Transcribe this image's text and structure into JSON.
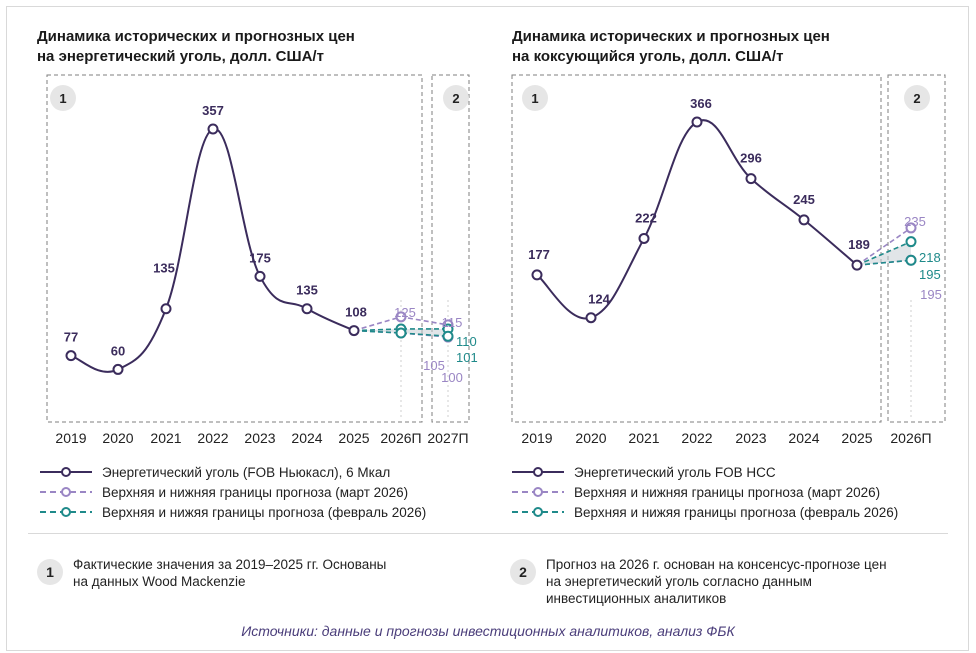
{
  "chart_data": [
    {
      "type": "line",
      "title": "Динамика исторических и прогнозных цен на энергетический уголь, долл. США/т",
      "title_lines": [
        "Динамика исторических и прогнозных цен",
        "на энергетический уголь, долл. США/т"
      ],
      "categories": [
        "2019",
        "2020",
        "2021",
        "2022",
        "2023",
        "2024",
        "2025",
        "2026П",
        "2027П"
      ],
      "series": [
        {
          "name": "Энергетический уголь (FOB Ньюкасл), 6 Мкал",
          "x": [
            "2019",
            "2020",
            "2021",
            "2022",
            "2023",
            "2024",
            "2025"
          ],
          "values": [
            77,
            60,
            135,
            357,
            175,
            135,
            108
          ],
          "color": "#3b2c5c"
        },
        {
          "name": "Верхняя и нижняя границы прогноза (март 2026)",
          "x": [
            "2025",
            "2026П",
            "2027П"
          ],
          "upper": [
            108,
            125,
            115
          ],
          "lower": [
            108,
            105,
            100
          ],
          "color": "#9a86c4"
        },
        {
          "name": "Верхняя и нижяя границы прогноза (февраль 2026)",
          "x": [
            "2025",
            "2026П",
            "2027П"
          ],
          "upper": [
            108,
            110,
            110
          ],
          "lower": [
            108,
            105,
            101
          ],
          "color": "#1f8a8a"
        }
      ],
      "marker_labels": {
        "main": [
          "77",
          "60",
          "135",
          "357",
          "175",
          "135",
          "108"
        ],
        "march": [
          "125",
          "105",
          "115",
          "100"
        ],
        "february": [
          "110",
          "101"
        ]
      },
      "period_badges": [
        "1",
        "2"
      ],
      "ylim": [
        0,
        400
      ]
    },
    {
      "type": "line",
      "title": "Динамика исторических и прогнозных цен на коксующийся уголь, долл. США/т",
      "title_lines": [
        "Динамика исторических и прогнозных цен",
        "на коксующийся уголь, долл. США/т"
      ],
      "categories": [
        "2019",
        "2020",
        "2021",
        "2022",
        "2023",
        "2024",
        "2025",
        "2026П"
      ],
      "series": [
        {
          "name": "Энергетический уголь FOB HCC",
          "x": [
            "2019",
            "2020",
            "2021",
            "2022",
            "2023",
            "2024",
            "2025"
          ],
          "values": [
            177,
            124,
            222,
            366,
            296,
            245,
            189
          ],
          "color": "#3b2c5c"
        },
        {
          "name": "Верхняя и нижняя границы прогноза (март 2026)",
          "x": [
            "2025",
            "2026П"
          ],
          "upper": [
            189,
            235
          ],
          "lower": [
            189,
            195
          ],
          "color": "#9a86c4"
        },
        {
          "name": "Верхняя и нижяя границы прогноза (февраль 2026)",
          "x": [
            "2025",
            "2026П"
          ],
          "upper": [
            189,
            218
          ],
          "lower": [
            189,
            195
          ],
          "color": "#1f8a8a"
        }
      ],
      "marker_labels": {
        "main": [
          "177",
          "124",
          "222",
          "366",
          "296",
          "245",
          "189"
        ],
        "march": [
          "235",
          "195"
        ],
        "february": [
          "218",
          "195"
        ]
      },
      "period_badges": [
        "1",
        "2"
      ],
      "ylim": [
        0,
        400
      ]
    }
  ],
  "notes": [
    {
      "badge": "1",
      "lines": [
        "Фактические значения за 2019–2025 гг. Основаны",
        "на данных Wood Mackenzie"
      ]
    },
    {
      "badge": "2",
      "lines": [
        "Прогноз на 2026 г. основан на консенсус-прогнозе цен",
        "на энергетический уголь согласно данным",
        "инвестиционных аналитиков"
      ]
    }
  ],
  "sources": "Источники: данные и прогнозы инвестиционных аналитиков, анализ ФБК",
  "colors": {
    "main": "#3b2c5c",
    "march": "#9a86c4",
    "february": "#1f8a8a",
    "band": "#c9cfd6",
    "box": "#7f7f7f"
  }
}
